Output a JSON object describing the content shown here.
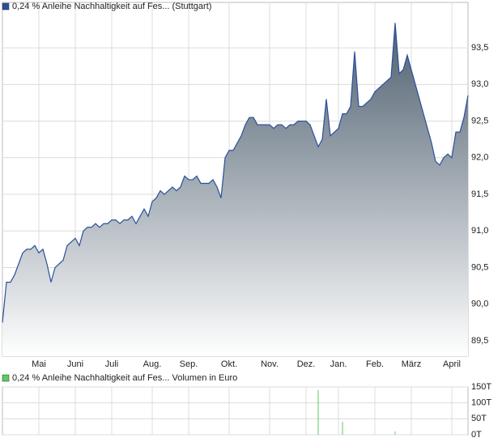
{
  "chart_data": [
    {
      "type": "area",
      "series": [
        {
          "name": "0,24 % Anleihe Nachhaltigkeit auf Fes... (Stuttgart)",
          "color": "#2b4f9a",
          "values": [
            89.75,
            90.3,
            90.3,
            90.4,
            90.55,
            90.7,
            90.75,
            90.75,
            90.8,
            90.7,
            90.75,
            90.55,
            90.3,
            90.5,
            90.55,
            90.6,
            90.8,
            90.85,
            90.9,
            90.8,
            91.0,
            91.05,
            91.05,
            91.1,
            91.05,
            91.1,
            91.1,
            91.15,
            91.15,
            91.1,
            91.15,
            91.15,
            91.2,
            91.1,
            91.2,
            91.3,
            91.2,
            91.4,
            91.45,
            91.55,
            91.5,
            91.55,
            91.6,
            91.55,
            91.6,
            91.75,
            91.7,
            91.7,
            91.75,
            91.65,
            91.65,
            91.65,
            91.7,
            91.6,
            91.45,
            92.0,
            92.1,
            92.1,
            92.2,
            92.3,
            92.45,
            92.55,
            92.55,
            92.45,
            92.45,
            92.45,
            92.45,
            92.4,
            92.45,
            92.45,
            92.4,
            92.45,
            92.45,
            92.5,
            92.5,
            92.5,
            92.45,
            92.3,
            92.15,
            92.25,
            92.8,
            92.3,
            92.35,
            92.4,
            92.6,
            92.6,
            92.7,
            93.45,
            92.7,
            92.7,
            92.75,
            92.8,
            92.9,
            92.95,
            93.0,
            93.05,
            93.1,
            93.84,
            93.15,
            93.2,
            93.4,
            93.2,
            93.0,
            92.8,
            92.6,
            92.4,
            92.2,
            91.95,
            91.9,
            92.0,
            92.05,
            92.0,
            92.35,
            92.35,
            92.55,
            92.85
          ]
        }
      ],
      "xticks": [
        {
          "value": 9,
          "label": "Mai"
        },
        {
          "value": 18,
          "label": "Juni"
        },
        {
          "value": 27,
          "label": "Juli"
        },
        {
          "value": 37,
          "label": "Aug."
        },
        {
          "value": 46,
          "label": "Sep."
        },
        {
          "value": 56,
          "label": "Okt."
        },
        {
          "value": 66,
          "label": "Nov."
        },
        {
          "value": 75,
          "label": "Dez."
        },
        {
          "value": 83,
          "label": "Jan."
        },
        {
          "value": 92,
          "label": "Feb."
        },
        {
          "value": 101,
          "label": "März"
        },
        {
          "value": 111,
          "label": "April"
        }
      ],
      "ylim": [
        89.29,
        94.12
      ],
      "yticks": [
        {
          "value": 89.5,
          "label": "89,5"
        },
        {
          "value": 90.0,
          "label": "90,0"
        },
        {
          "value": 90.5,
          "label": "90,5"
        },
        {
          "value": 91.0,
          "label": "91,0"
        },
        {
          "value": 91.5,
          "label": "91,5"
        },
        {
          "value": 92.0,
          "label": "92,0"
        },
        {
          "value": 92.5,
          "label": "92,5"
        },
        {
          "value": 93.0,
          "label": "93,0"
        },
        {
          "value": 93.5,
          "label": "93,5"
        }
      ],
      "grid": true
    },
    {
      "type": "bar",
      "series": [
        {
          "name": "0,24 % Anleihe Nachhaltigkeit auf Fes... Volumen in Euro",
          "color": "#5ccc5c",
          "values": [
            0,
            0,
            0,
            0,
            0,
            0,
            0,
            0,
            0,
            0,
            0,
            0,
            0,
            0,
            0,
            0,
            0,
            0,
            0,
            0,
            0,
            0,
            0,
            0,
            0,
            0,
            0,
            0,
            0,
            0,
            0,
            0,
            0,
            0,
            0,
            0,
            0,
            0,
            0,
            0,
            0,
            0,
            0,
            0,
            0,
            0,
            0,
            0,
            0,
            0,
            0,
            0,
            0,
            0,
            0,
            0,
            0,
            0,
            0,
            0,
            0,
            0,
            0,
            0,
            0,
            0,
            0,
            0,
            0,
            0,
            0,
            0,
            0,
            0,
            0,
            0,
            0,
            0,
            140000,
            0,
            0,
            0,
            0,
            0,
            40000,
            0,
            0,
            0,
            0,
            0,
            0,
            0,
            0,
            0,
            0,
            0,
            0,
            10000,
            0,
            0,
            0,
            0,
            0,
            0,
            0,
            0,
            0,
            0,
            0,
            0,
            0,
            0,
            0,
            0,
            0,
            0
          ]
        }
      ],
      "ylim": [
        0,
        150000
      ],
      "yticks": [
        {
          "value": 0,
          "label": "0T"
        },
        {
          "value": 50000,
          "label": "50T"
        },
        {
          "value": 100000,
          "label": "100T"
        },
        {
          "value": 150000,
          "label": "150T"
        }
      ],
      "grid": true
    }
  ]
}
